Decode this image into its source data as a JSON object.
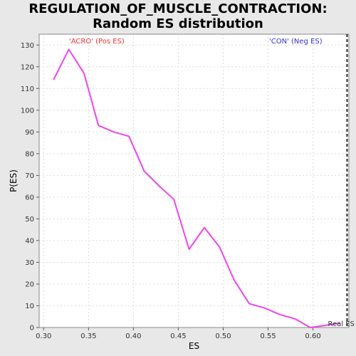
{
  "chart_data": {
    "type": "line",
    "title": "REGULATION_OF_MUSCLE_CONTRACTION: Random ES distribution",
    "xlabel": "ES",
    "ylabel": "P(ES)",
    "xlim": [
      0.295,
      0.64
    ],
    "ylim": [
      0,
      135
    ],
    "xticks": [
      "0.30",
      "0.35",
      "0.40",
      "0.45",
      "0.50",
      "0.55",
      "0.60"
    ],
    "yticks": [
      "0",
      "10",
      "20",
      "30",
      "40",
      "50",
      "60",
      "70",
      "80",
      "90",
      "100",
      "110",
      "120",
      "130"
    ],
    "grid": true,
    "series": [
      {
        "color": "#ee44ee",
        "x": [
          0.311,
          0.328,
          0.345,
          0.361,
          0.378,
          0.395,
          0.412,
          0.429,
          0.445,
          0.462,
          0.479,
          0.496,
          0.512,
          0.529,
          0.546,
          0.563,
          0.58,
          0.597,
          0.614,
          0.63
        ],
        "y": [
          114,
          128,
          117,
          93,
          90,
          88,
          72,
          65,
          59,
          36,
          46,
          37,
          22,
          11,
          9,
          6,
          4,
          0,
          1,
          2
        ]
      }
    ],
    "annotations": {
      "pos_label": "'ACRO' (Pos ES)",
      "pos_color": "#ee3333",
      "neg_label": "'CON' (Neg ES)",
      "neg_color": "#3333cc",
      "real_es_label": "Real ES",
      "real_es_value": 0.638
    }
  }
}
